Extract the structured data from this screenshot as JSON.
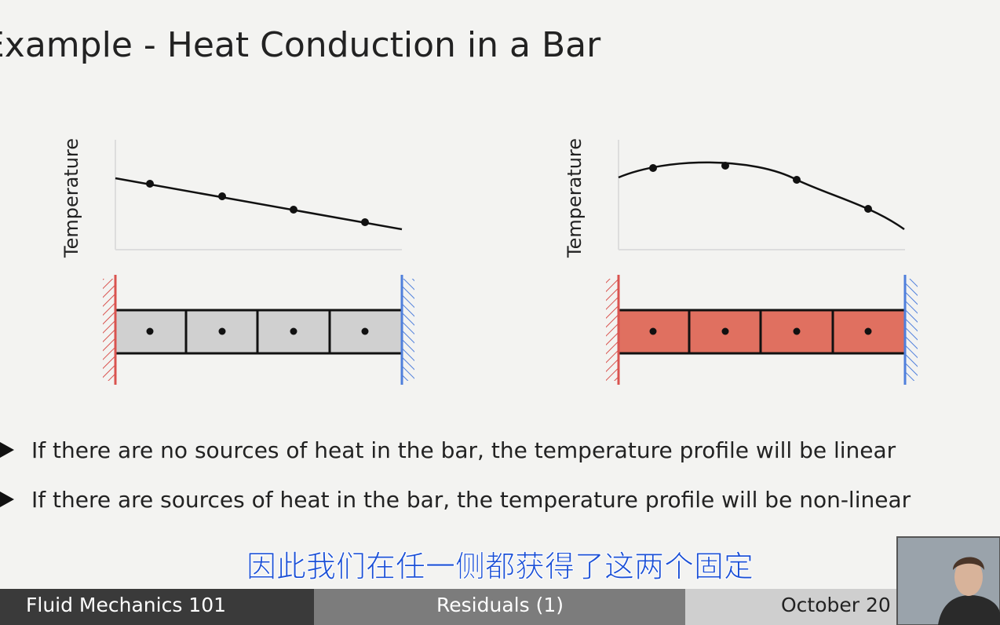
{
  "slide": {
    "title": "Example - Heat Conduction in a Bar",
    "plots": [
      {
        "axis_label": "Temperature"
      },
      {
        "axis_label": "Temperature"
      }
    ],
    "bullets": [
      "If there are no sources of heat in the bar, the temperature profile will be linear",
      "If there are sources of heat in the bar, the temperature profile will be non-linear"
    ]
  },
  "subtitle": "因此我们在任一侧都获得了这两个固定",
  "footer": {
    "left": "Fluid Mechanics 101",
    "center": "Residuals (1)",
    "right": "October 20"
  }
}
